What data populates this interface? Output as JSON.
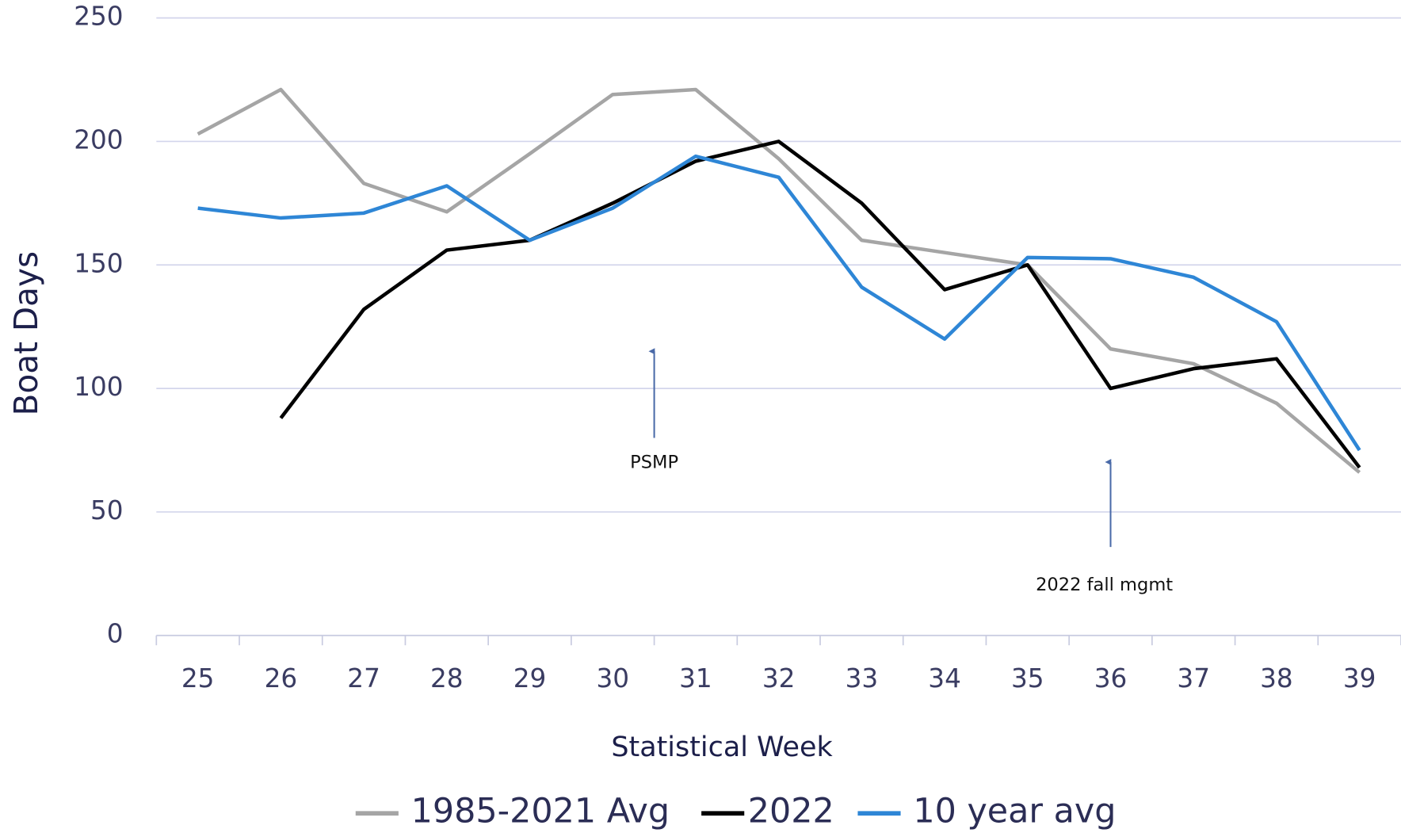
{
  "chart_data": {
    "type": "line",
    "y_axis_label": "Boat Days",
    "x_axis_label": "Statistical Week",
    "categories": [
      25,
      26,
      27,
      28,
      29,
      30,
      31,
      32,
      33,
      34,
      35,
      36,
      37,
      38,
      39
    ],
    "series": [
      {
        "name": "1985-2021 Avg",
        "color": "#a5a5a5",
        "values": [
          203,
          221,
          183,
          171.5,
          195,
          219,
          221,
          193,
          160,
          155,
          150,
          116,
          110,
          94,
          66
        ]
      },
      {
        "name": "2022",
        "color": "#000000",
        "values": [
          null,
          88,
          132,
          156,
          160,
          175,
          192,
          200,
          175,
          140,
          150,
          100,
          108,
          112,
          68
        ]
      },
      {
        "name": "10 year avg",
        "color": "#2e86d6",
        "values": [
          173,
          169,
          171,
          182,
          160,
          173,
          194,
          185.5,
          141,
          120,
          153,
          152.5,
          145,
          127,
          75
        ]
      }
    ],
    "ylim": [
      0,
      250
    ],
    "yticks": [
      0,
      50,
      100,
      150,
      200,
      250
    ],
    "grid": true,
    "legend": "bottom",
    "annotations": [
      "PSMP",
      "2022 fall mgmt"
    ]
  }
}
